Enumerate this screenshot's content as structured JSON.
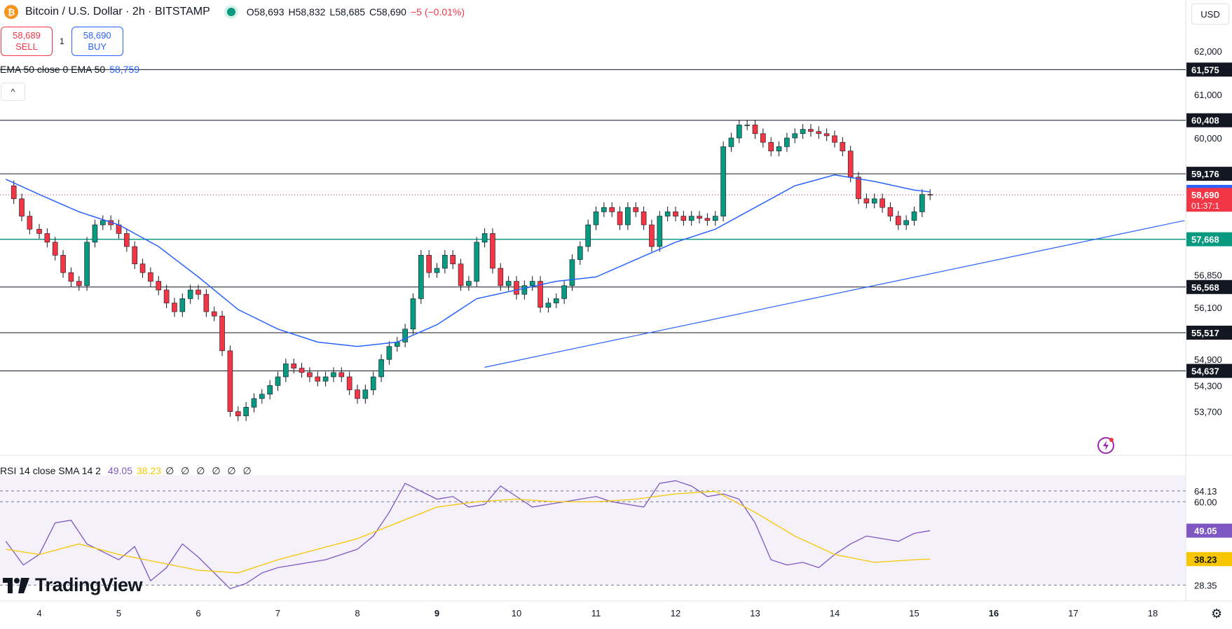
{
  "header": {
    "symbol": "Bitcoin / U.S. Dollar · 2h · BITSTAMP",
    "coin_glyph": "₿",
    "ohlc": {
      "open": "O58,693",
      "high": "H58,832",
      "low": "L58,685",
      "close": "C58,690",
      "change": "−5 (−0.01%)"
    }
  },
  "trade": {
    "sell_price": "58,689",
    "sell_label": "SELL",
    "quantity": "1",
    "buy_price": "58,690",
    "buy_label": "BUY"
  },
  "indicators": {
    "ema_label": "EMA 50 close 0 EMA 50",
    "ema_value": "58,759",
    "rsi_label": "RSI 14 close SMA 14 2",
    "rsi_value": "49.05",
    "rsi_sma_value": "38.23",
    "rsi_extra": "∅ ∅ ∅ ∅ ∅ ∅"
  },
  "collapse_glyph": "^",
  "currency": "USD",
  "branding": {
    "logo_text": "TradingView"
  },
  "colors": {
    "up": "#089981",
    "down": "#f23645",
    "ema": "#2962ff",
    "rsi": "#7e57c2",
    "rsi_sma": "#f7c600",
    "support": "#089981",
    "trendline": "#2962ff"
  },
  "chart_data": {
    "type": "candlestick",
    "title": "Bitcoin / U.S. Dollar · 2h · BITSTAMP",
    "price_axis": {
      "ticks": [
        "62,000",
        "61,000",
        "60,000",
        "56,850",
        "56,100",
        "54,900",
        "54,300",
        "53,700"
      ],
      "min": 53200,
      "max": 62700
    },
    "time_axis": {
      "ticks": [
        "4",
        "5",
        "6",
        "7",
        "8",
        "9",
        "10",
        "11",
        "12",
        "13",
        "14",
        "15",
        "16",
        "17",
        "18"
      ],
      "bold": [
        "9",
        "16"
      ]
    },
    "levels": [
      {
        "label": "61,575",
        "value": 61575,
        "style": "black"
      },
      {
        "label": "60,408",
        "value": 60408,
        "style": "black"
      },
      {
        "label": "59,176",
        "value": 59176,
        "style": "black"
      },
      {
        "label": "58,759",
        "value": 58759,
        "style": "ema"
      },
      {
        "label": "58,690",
        "value": 58690,
        "style": "last",
        "countdown": "01:37:1"
      },
      {
        "label": "57,668",
        "value": 57668,
        "style": "support"
      },
      {
        "label": "56,568",
        "value": 56568,
        "style": "black"
      },
      {
        "label": "55,517",
        "value": 55517,
        "style": "black"
      },
      {
        "label": "54,637",
        "value": 54637,
        "style": "black"
      }
    ],
    "trendline": {
      "from": [
        9.6,
        54720
      ],
      "to": [
        18.4,
        58100
      ]
    },
    "close_series": [
      [
        3.58,
        58900
      ],
      [
        3.68,
        58600
      ],
      [
        3.78,
        58200
      ],
      [
        3.88,
        57900
      ],
      [
        4.0,
        57800
      ],
      [
        4.1,
        57600
      ],
      [
        4.2,
        57300
      ],
      [
        4.3,
        56900
      ],
      [
        4.4,
        56700
      ],
      [
        4.5,
        56600
      ],
      [
        4.6,
        57600
      ],
      [
        4.7,
        58000
      ],
      [
        4.8,
        58100
      ],
      [
        4.9,
        58000
      ],
      [
        5.0,
        57800
      ],
      [
        5.1,
        57500
      ],
      [
        5.2,
        57100
      ],
      [
        5.3,
        56900
      ],
      [
        5.4,
        56700
      ],
      [
        5.5,
        56500
      ],
      [
        5.6,
        56200
      ],
      [
        5.7,
        56000
      ],
      [
        5.8,
        56300
      ],
      [
        5.9,
        56500
      ],
      [
        6.0,
        56400
      ],
      [
        6.1,
        56000
      ],
      [
        6.2,
        55900
      ],
      [
        6.3,
        55100
      ],
      [
        6.4,
        53700
      ],
      [
        6.5,
        53600
      ],
      [
        6.6,
        53800
      ],
      [
        6.7,
        54000
      ],
      [
        6.8,
        54100
      ],
      [
        6.9,
        54300
      ],
      [
        7.0,
        54500
      ],
      [
        7.1,
        54800
      ],
      [
        7.2,
        54700
      ],
      [
        7.3,
        54600
      ],
      [
        7.4,
        54500
      ],
      [
        7.5,
        54400
      ],
      [
        7.6,
        54500
      ],
      [
        7.7,
        54600
      ],
      [
        7.8,
        54500
      ],
      [
        7.9,
        54200
      ],
      [
        8.0,
        54000
      ],
      [
        8.1,
        54200
      ],
      [
        8.2,
        54500
      ],
      [
        8.3,
        54900
      ],
      [
        8.4,
        55200
      ],
      [
        8.5,
        55300
      ],
      [
        8.6,
        55600
      ],
      [
        8.7,
        56300
      ],
      [
        8.8,
        57300
      ],
      [
        8.9,
        56900
      ],
      [
        9.0,
        57000
      ],
      [
        9.1,
        57300
      ],
      [
        9.2,
        57100
      ],
      [
        9.3,
        56600
      ],
      [
        9.4,
        56700
      ],
      [
        9.5,
        57600
      ],
      [
        9.6,
        57800
      ],
      [
        9.7,
        57000
      ],
      [
        9.8,
        56600
      ],
      [
        9.9,
        56700
      ],
      [
        10.0,
        56400
      ],
      [
        10.1,
        56600
      ],
      [
        10.2,
        56700
      ],
      [
        10.3,
        56100
      ],
      [
        10.4,
        56200
      ],
      [
        10.5,
        56300
      ],
      [
        10.6,
        56600
      ],
      [
        10.7,
        57200
      ],
      [
        10.8,
        57500
      ],
      [
        10.9,
        58000
      ],
      [
        11.0,
        58300
      ],
      [
        11.1,
        58400
      ],
      [
        11.2,
        58300
      ],
      [
        11.3,
        58000
      ],
      [
        11.4,
        58400
      ],
      [
        11.5,
        58300
      ],
      [
        11.6,
        58000
      ],
      [
        11.7,
        57500
      ],
      [
        11.8,
        58200
      ],
      [
        11.9,
        58300
      ],
      [
        12.0,
        58200
      ],
      [
        12.1,
        58100
      ],
      [
        12.2,
        58200
      ],
      [
        12.3,
        58150
      ],
      [
        12.4,
        58100
      ],
      [
        12.5,
        58200
      ],
      [
        12.6,
        59800
      ],
      [
        12.7,
        60000
      ],
      [
        12.8,
        60300
      ],
      [
        12.9,
        60300
      ],
      [
        13.0,
        60100
      ],
      [
        13.1,
        59900
      ],
      [
        13.2,
        59700
      ],
      [
        13.3,
        59800
      ],
      [
        13.4,
        60000
      ],
      [
        13.5,
        60100
      ],
      [
        13.6,
        60200
      ],
      [
        13.7,
        60150
      ],
      [
        13.8,
        60100
      ],
      [
        13.9,
        60050
      ],
      [
        14.0,
        59900
      ],
      [
        14.1,
        59700
      ],
      [
        14.2,
        59100
      ],
      [
        14.3,
        58600
      ],
      [
        14.4,
        58500
      ],
      [
        14.5,
        58600
      ],
      [
        14.6,
        58400
      ],
      [
        14.7,
        58200
      ],
      [
        14.8,
        58000
      ],
      [
        14.9,
        58100
      ],
      [
        15.0,
        58300
      ],
      [
        15.1,
        58700
      ],
      [
        15.2,
        58690
      ]
    ],
    "ema_series": [
      [
        3.58,
        59050
      ],
      [
        4.0,
        58700
      ],
      [
        4.5,
        58300
      ],
      [
        5.0,
        58000
      ],
      [
        5.5,
        57500
      ],
      [
        6.0,
        56800
      ],
      [
        6.5,
        56050
      ],
      [
        7.0,
        55600
      ],
      [
        7.5,
        55300
      ],
      [
        8.0,
        55200
      ],
      [
        8.5,
        55300
      ],
      [
        9.0,
        55700
      ],
      [
        9.5,
        56300
      ],
      [
        10.0,
        56500
      ],
      [
        10.5,
        56700
      ],
      [
        11.0,
        56800
      ],
      [
        11.5,
        57200
      ],
      [
        12.0,
        57600
      ],
      [
        12.5,
        57900
      ],
      [
        13.0,
        58400
      ],
      [
        13.5,
        58900
      ],
      [
        14.0,
        59150
      ],
      [
        14.5,
        59000
      ],
      [
        15.0,
        58800
      ],
      [
        15.2,
        58759
      ]
    ],
    "rsi": {
      "levels": [
        {
          "label": "64.13",
          "value": 64.13
        },
        {
          "label": "60.00",
          "value": 60.0
        },
        {
          "label": "28.35",
          "value": 28.35
        }
      ],
      "min": 25,
      "max": 75,
      "band": [
        28.35,
        70
      ],
      "series": [
        [
          3.58,
          45
        ],
        [
          3.8,
          36
        ],
        [
          4.0,
          40
        ],
        [
          4.2,
          52
        ],
        [
          4.4,
          53
        ],
        [
          4.6,
          44
        ],
        [
          4.8,
          41
        ],
        [
          5.0,
          38
        ],
        [
          5.2,
          43
        ],
        [
          5.4,
          30
        ],
        [
          5.6,
          35
        ],
        [
          5.8,
          44
        ],
        [
          6.0,
          39
        ],
        [
          6.2,
          33
        ],
        [
          6.4,
          27
        ],
        [
          6.6,
          29
        ],
        [
          6.8,
          33
        ],
        [
          7.0,
          35
        ],
        [
          7.2,
          36
        ],
        [
          7.4,
          37
        ],
        [
          7.6,
          38
        ],
        [
          7.8,
          40
        ],
        [
          8.0,
          42
        ],
        [
          8.2,
          47
        ],
        [
          8.4,
          56
        ],
        [
          8.6,
          67
        ],
        [
          8.8,
          64
        ],
        [
          9.0,
          61
        ],
        [
          9.2,
          62
        ],
        [
          9.4,
          58
        ],
        [
          9.6,
          59
        ],
        [
          9.8,
          66
        ],
        [
          10.0,
          62
        ],
        [
          10.2,
          58
        ],
        [
          10.4,
          59
        ],
        [
          10.6,
          60
        ],
        [
          10.8,
          61
        ],
        [
          11.0,
          62
        ],
        [
          11.2,
          60
        ],
        [
          11.4,
          59
        ],
        [
          11.6,
          58
        ],
        [
          11.8,
          67
        ],
        [
          12.0,
          68
        ],
        [
          12.2,
          66
        ],
        [
          12.4,
          62
        ],
        [
          12.6,
          63
        ],
        [
          12.8,
          61
        ],
        [
          13.0,
          52
        ],
        [
          13.2,
          38
        ],
        [
          13.4,
          36
        ],
        [
          13.6,
          37
        ],
        [
          13.8,
          35
        ],
        [
          14.0,
          40
        ],
        [
          14.2,
          44
        ],
        [
          14.4,
          47
        ],
        [
          14.6,
          46
        ],
        [
          14.8,
          45
        ],
        [
          15.0,
          48
        ],
        [
          15.2,
          49.05
        ]
      ],
      "sma_series": [
        [
          3.58,
          42
        ],
        [
          4.0,
          40
        ],
        [
          4.5,
          44
        ],
        [
          5.0,
          40
        ],
        [
          5.5,
          37
        ],
        [
          6.0,
          34
        ],
        [
          6.5,
          33
        ],
        [
          7.0,
          38
        ],
        [
          7.5,
          42
        ],
        [
          8.0,
          46
        ],
        [
          8.5,
          52
        ],
        [
          9.0,
          58
        ],
        [
          9.5,
          60
        ],
        [
          10.0,
          61
        ],
        [
          10.5,
          60
        ],
        [
          11.0,
          60
        ],
        [
          11.5,
          61
        ],
        [
          12.0,
          63
        ],
        [
          12.5,
          64
        ],
        [
          13.0,
          56
        ],
        [
          13.5,
          47
        ],
        [
          14.0,
          40
        ],
        [
          14.5,
          37
        ],
        [
          15.0,
          38
        ],
        [
          15.2,
          38.23
        ]
      ]
    }
  }
}
